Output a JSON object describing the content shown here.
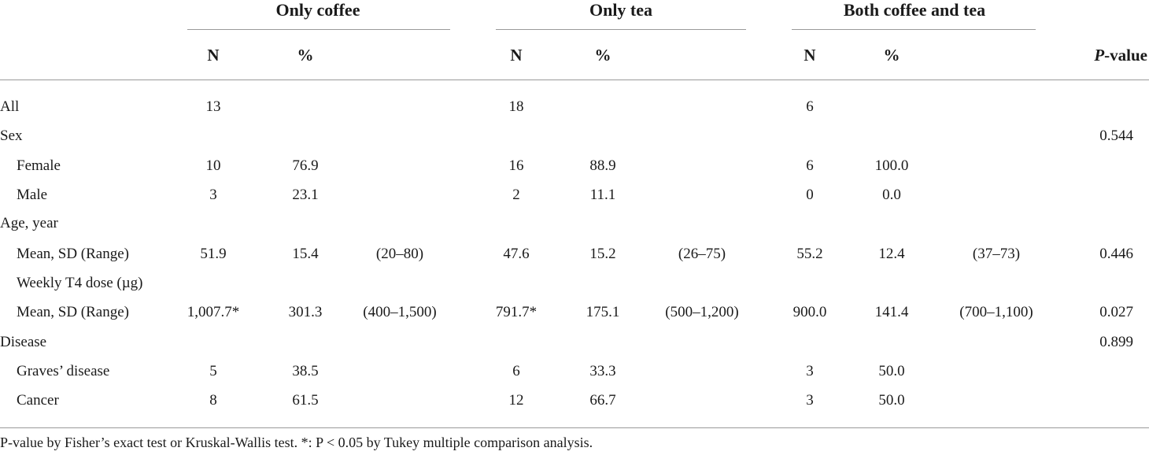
{
  "table": {
    "groups": [
      "Only coffee",
      "Only tea",
      "Both coffee and tea"
    ],
    "subheaders": {
      "n": "N",
      "pct": "%",
      "p_italic": "P",
      "p_rest": "-value"
    },
    "rows": [
      {
        "label": "All",
        "indent": false,
        "cells": [
          "13",
          "",
          "",
          "18",
          "",
          "",
          "6",
          "",
          ""
        ],
        "p": ""
      },
      {
        "label": "Sex",
        "indent": false,
        "cells": [
          "",
          "",
          "",
          "",
          "",
          "",
          "",
          "",
          ""
        ],
        "p": "0.544"
      },
      {
        "label": "Female",
        "indent": true,
        "cells": [
          "10",
          "76.9",
          "",
          "16",
          "88.9",
          "",
          "6",
          "100.0",
          ""
        ],
        "p": ""
      },
      {
        "label": "Male",
        "indent": true,
        "cells": [
          "3",
          "23.1",
          "",
          "2",
          "11.1",
          "",
          "0",
          "0.0",
          ""
        ],
        "p": ""
      },
      {
        "label": "Age, year",
        "indent": false,
        "cells": [
          "",
          "",
          "",
          "",
          "",
          "",
          "",
          "",
          ""
        ],
        "p": ""
      },
      {
        "label": "Mean, SD (Range)",
        "indent": true,
        "cells": [
          "51.9",
          "15.4",
          "(20–80)",
          "47.6",
          "15.2",
          "(26–75)",
          "55.2",
          "12.4",
          "(37–73)"
        ],
        "p": "0.446"
      },
      {
        "label": "Weekly T4 dose (µg)",
        "indent": true,
        "cells": [
          "",
          "",
          "",
          "",
          "",
          "",
          "",
          "",
          ""
        ],
        "p": ""
      },
      {
        "label": "Mean, SD (Range)",
        "indent": true,
        "cells": [
          "1,007.7*",
          "301.3",
          "(400–1,500)",
          "791.7*",
          "175.1",
          "(500–1,200)",
          "900.0",
          "141.4",
          "(700–1,100)"
        ],
        "p": "0.027"
      },
      {
        "label": "Disease",
        "indent": false,
        "cells": [
          "",
          "",
          "",
          "",
          "",
          "",
          "",
          "",
          ""
        ],
        "p": "0.899"
      },
      {
        "label": "Graves’ disease",
        "indent": true,
        "cells": [
          "5",
          "38.5",
          "",
          "6",
          "33.3",
          "",
          "3",
          "50.0",
          ""
        ],
        "p": ""
      },
      {
        "label": "Cancer",
        "indent": true,
        "cells": [
          "8",
          "61.5",
          "",
          "12",
          "66.7",
          "",
          "3",
          "50.0",
          ""
        ],
        "p": ""
      }
    ],
    "footnote": "P-value by Fisher’s exact test or Kruskal-Wallis test. *: P < 0.05 by Tukey multiple comparison analysis."
  }
}
